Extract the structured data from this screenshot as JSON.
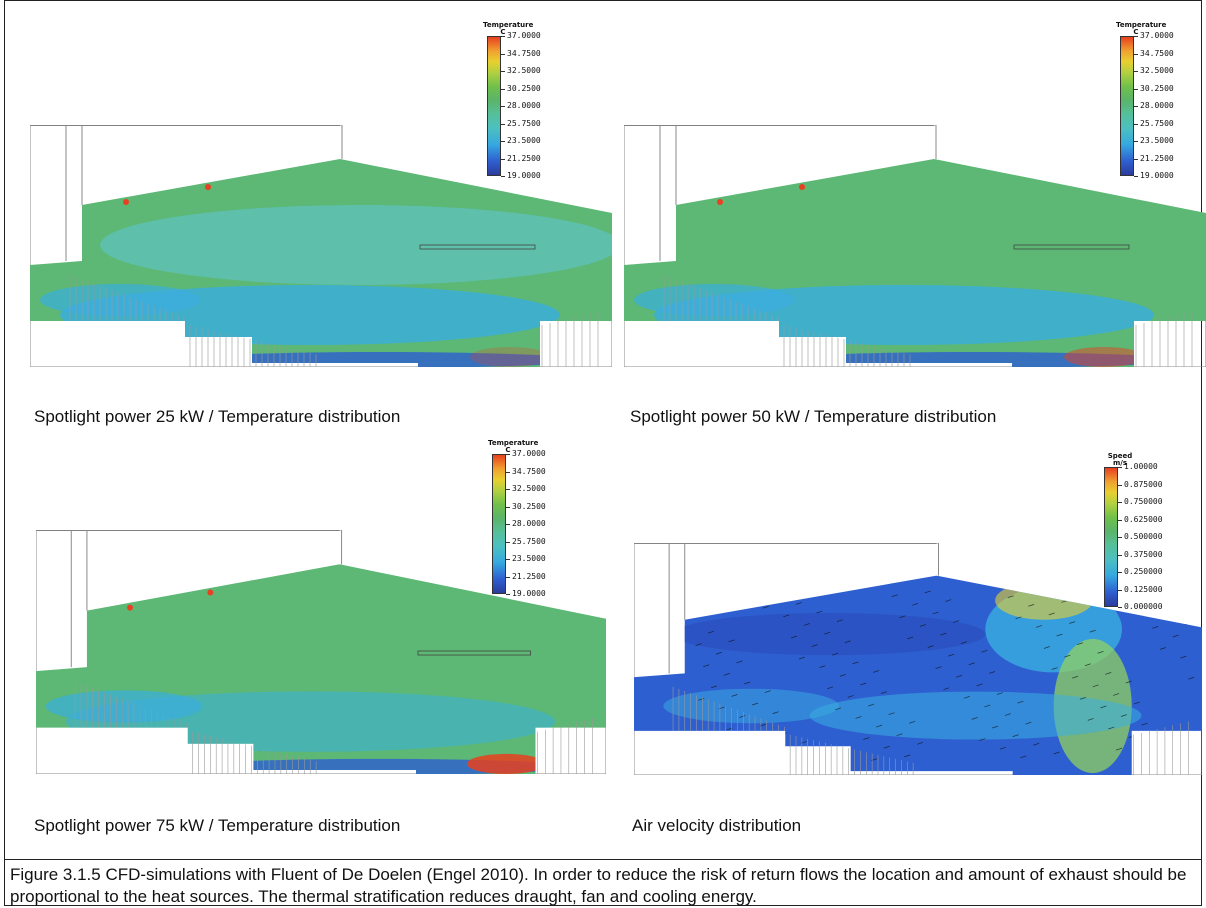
{
  "legend_temperature": {
    "title": "Temperature",
    "unit": "C",
    "ticks": [
      "37.0000",
      "34.7500",
      "32.5000",
      "30.2500",
      "28.0000",
      "25.7500",
      "23.5000",
      "21.2500",
      "19.0000"
    ]
  },
  "legend_speed": {
    "title": "Speed",
    "unit": "m/s",
    "ticks": [
      "1.00000",
      "0.875000",
      "0.750000",
      "0.625000",
      "0.500000",
      "0.375000",
      "0.250000",
      "0.125000",
      "0.000000"
    ]
  },
  "captions": {
    "panel1": "Spotlight power 25 kW / Temperature distribution",
    "panel2": "Spotlight power 50 kW / Temperature distribution",
    "panel3": "Spotlight power 75 kW / Temperature distribution",
    "panel4": "Air velocity distribution"
  },
  "figure_caption": "Figure 3.1.5 CFD-simulations with Fluent of De Doelen (Engel 2010). In order to reduce the risk of return flows the location and amount of exhaust should be proportional to the heat sources. The thermal stratification reduces draught, fan and cooling energy.",
  "colors": {
    "base_green": "#5cb874",
    "teal": "#5ec0b0",
    "cyan": "#3aaee0",
    "blue": "#2e5fd0",
    "dark_blue": "#2b3c9c",
    "red": "#e84020"
  }
}
